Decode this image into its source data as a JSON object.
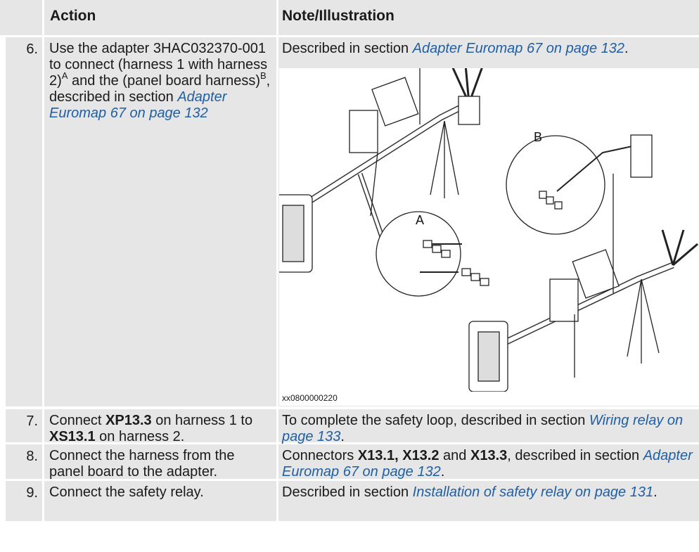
{
  "table": {
    "header": [
      "Action",
      "Note/Illustration"
    ],
    "rows": [
      {
        "number": "6.",
        "action": [
          {
            "text": "Use the adapter 3HAC032370-001 to connect (harness 1 with harness 2)",
            "style": "plain"
          },
          {
            "text": "A",
            "style": "sup"
          },
          {
            "text": " and the (panel board harness)",
            "style": "plain"
          },
          {
            "text": "B",
            "style": "sup"
          },
          {
            "text": ", described in section ",
            "style": "plain"
          },
          {
            "text": "Adapter Euromap 67 on page 132",
            "style": "link"
          }
        ],
        "note": [
          {
            "text": "Described in section ",
            "style": "plain"
          },
          {
            "text": "Adapter Euromap 67 on page 132",
            "style": "link"
          },
          {
            "text": ".",
            "style": "plain"
          }
        ],
        "figure": {
          "labels": [
            "A",
            "B"
          ],
          "caption": "xx0800000220"
        }
      },
      {
        "number": "7.",
        "action": [
          {
            "text": "Connect ",
            "style": "plain"
          },
          {
            "text": "XP13.3",
            "style": "bold"
          },
          {
            "text": " on harness 1 to ",
            "style": "plain"
          },
          {
            "text": "XS13.1",
            "style": "bold"
          },
          {
            "text": " on harness 2.",
            "style": "plain"
          }
        ],
        "note": [
          {
            "text": "To complete the safety loop, described in section ",
            "style": "plain"
          },
          {
            "text": "Wiring relay on page 133",
            "style": "link"
          },
          {
            "text": ".",
            "style": "plain"
          }
        ]
      },
      {
        "number": "8.",
        "action": [
          {
            "text": "Connect the harness from the panel board to the adapter.",
            "style": "plain"
          }
        ],
        "note": [
          {
            "text": "Connectors ",
            "style": "plain"
          },
          {
            "text": "X13.1, X13.2",
            "style": "bold"
          },
          {
            "text": " and ",
            "style": "plain"
          },
          {
            "text": "X13.3",
            "style": "bold"
          },
          {
            "text": ", described in section ",
            "style": "plain"
          },
          {
            "text": "Adapter Euromap 67 on page 132",
            "style": "link"
          },
          {
            "text": ".",
            "style": "plain"
          }
        ]
      },
      {
        "number": "9.",
        "action": [
          {
            "text": "Connect the safety relay.",
            "style": "plain"
          }
        ],
        "note": [
          {
            "text": "Described in section ",
            "style": "plain"
          },
          {
            "text": "Installation of safety relay on page 131",
            "style": "link"
          },
          {
            "text": ".",
            "style": "plain"
          }
        ]
      }
    ]
  }
}
